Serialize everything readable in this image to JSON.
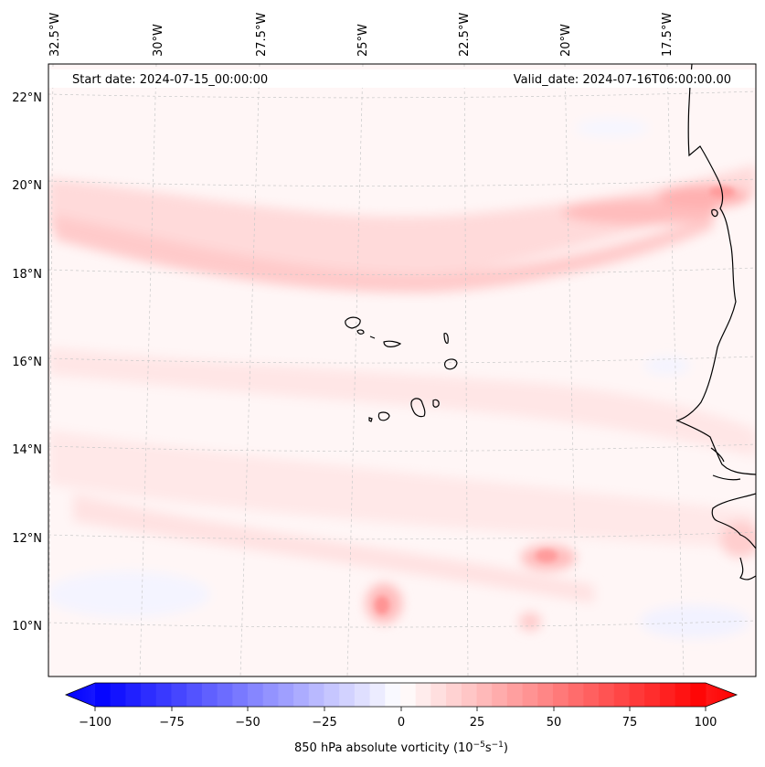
{
  "header": {
    "start_label": "Start date: 2024-07-15_00:00:00",
    "valid_label": "Valid_date: 2024-07-16T06:00:00.00"
  },
  "map": {
    "lon_labels": [
      "32.5°W",
      "30°W",
      "27.5°W",
      "25°W",
      "22.5°W",
      "20°W",
      "17.5°W"
    ],
    "lat_labels": [
      "22°N",
      "20°N",
      "18°N",
      "16°N",
      "14°N",
      "12°N",
      "10°N"
    ],
    "gridlines": true
  },
  "colorbar": {
    "ticks": [
      "−100",
      "−75",
      "−50",
      "−25",
      "0",
      "25",
      "50",
      "75",
      "100"
    ],
    "label_prefix": "850 hPa absolute vorticity (10",
    "label_exp1": "−5",
    "label_mid": "s",
    "label_exp2": "−1",
    "label_suffix": ")",
    "min_color": "#0000ff",
    "mid_color": "#ffffff",
    "max_color": "#ff0000"
  }
}
